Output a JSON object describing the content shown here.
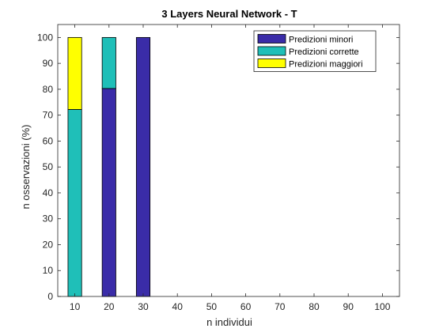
{
  "chart_data": {
    "type": "bar",
    "stacked": true,
    "title": "3 Layers Neural Network - T",
    "xlabel": "n individui",
    "ylabel": "n osservazioni (%)",
    "xlim": [
      5,
      105
    ],
    "ylim": [
      0,
      105
    ],
    "x_ticks": [
      10,
      20,
      30,
      40,
      50,
      60,
      70,
      80,
      90,
      100
    ],
    "y_ticks": [
      0,
      10,
      20,
      30,
      40,
      50,
      60,
      70,
      80,
      90,
      100
    ],
    "x": [
      10,
      20,
      30
    ],
    "bar_width": 4,
    "legend_position": "top-right",
    "grid": false,
    "series": [
      {
        "name": "Predizioni minori",
        "color": "#3a2ca8",
        "values": [
          0,
          80.3,
          100
        ]
      },
      {
        "name": "Predizioni corrette",
        "color": "#1fbfb8",
        "values": [
          72.2,
          19.7,
          0
        ]
      },
      {
        "name": "Predizioni maggiori",
        "color": "#ffff00",
        "values": [
          27.8,
          0,
          0
        ]
      }
    ]
  }
}
